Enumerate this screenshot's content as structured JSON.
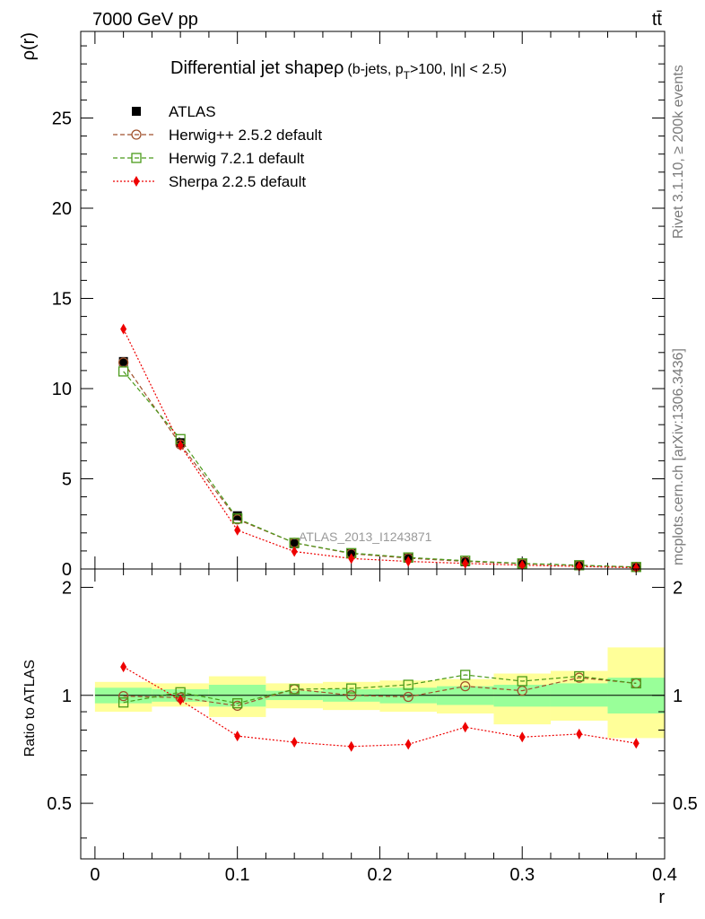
{
  "header": {
    "left": "7000 GeV pp",
    "right": "tt̄"
  },
  "side": {
    "rivet": "Rivet 3.1.10, ≥ 200k events",
    "mcplots": "mcplots.cern.ch [arXiv:1306.3436]"
  },
  "chart_data": [
    {
      "type": "line",
      "title": "Differential jet shape ρ",
      "title_main": "Differential jet shape",
      "title_sym": "ρ",
      "title_sub": "(b-jets, p",
      "title_sub_T": "T",
      "title_sub_rest": ">100, |η| < 2.5)",
      "watermark": "ATLAS_2013_I1243871",
      "ylabel": "ρ(r)",
      "xlabel": "r",
      "xlim": [
        -0.01,
        0.4
      ],
      "ylim": [
        0,
        29.8
      ],
      "yticks": [
        0,
        5,
        10,
        15,
        20,
        25
      ],
      "ytick_labels": [
        "0",
        "5",
        "10",
        "15",
        "20",
        "25"
      ],
      "legend_position": "top-left",
      "x": [
        0.02,
        0.06,
        0.1,
        0.14,
        0.18,
        0.22,
        0.26,
        0.3,
        0.34,
        0.38
      ],
      "series": [
        {
          "name": "ATLAS",
          "color": "#000000",
          "marker": "square-filled",
          "values": [
            11.5,
            7.0,
            2.95,
            1.4,
            0.85,
            0.6,
            0.4,
            0.28,
            0.18,
            0.1
          ]
        },
        {
          "name": "Herwig++ 2.5.2 default",
          "color": "#a0522d",
          "marker": "circle-open",
          "dash": "dashed",
          "values": [
            11.45,
            6.9,
            2.75,
            1.45,
            0.85,
            0.6,
            0.42,
            0.29,
            0.2,
            0.11
          ]
        },
        {
          "name": "Herwig 7.2.1 default",
          "color": "#4a9a1a",
          "marker": "square-open",
          "dash": "dashed",
          "values": [
            10.95,
            7.2,
            2.8,
            1.45,
            0.88,
            0.64,
            0.46,
            0.31,
            0.21,
            0.11
          ]
        },
        {
          "name": "Sherpa 2.2.5 default",
          "color": "#ee0000",
          "marker": "diamond-filled",
          "dash": "dotted",
          "values": [
            13.3,
            6.85,
            2.15,
            0.97,
            0.58,
            0.42,
            0.31,
            0.21,
            0.14,
            0.07
          ]
        }
      ]
    },
    {
      "type": "line",
      "ylabel": "Ratio to ATLAS",
      "xlabel": "r",
      "xlim": [
        -0.01,
        0.4
      ],
      "ylim": [
        0.35,
        2.25
      ],
      "yticks": [
        0.5,
        1,
        2
      ],
      "ytick_labels": [
        "0.5",
        "1",
        "2"
      ],
      "xticks": [
        0,
        0.1,
        0.2,
        0.3,
        0.4
      ],
      "xtick_labels": [
        "0",
        "0.1",
        "0.2",
        "0.3",
        "0.4"
      ],
      "x": [
        0.02,
        0.06,
        0.1,
        0.14,
        0.18,
        0.22,
        0.26,
        0.3,
        0.34,
        0.38
      ],
      "bins": [
        0,
        0.04,
        0.08,
        0.12,
        0.16,
        0.2,
        0.24,
        0.28,
        0.32,
        0.36,
        0.4
      ],
      "band_stat": [
        [
          0.95,
          1.05
        ],
        [
          0.96,
          1.04
        ],
        [
          0.93,
          1.07
        ],
        [
          0.97,
          1.03
        ],
        [
          0.96,
          1.04
        ],
        [
          0.95,
          1.05
        ],
        [
          0.94,
          1.06
        ],
        [
          0.93,
          1.07
        ],
        [
          0.93,
          1.08
        ],
        [
          0.89,
          1.12
        ]
      ],
      "band_total": [
        [
          0.9,
          1.09
        ],
        [
          0.93,
          1.08
        ],
        [
          0.87,
          1.13
        ],
        [
          0.92,
          1.08
        ],
        [
          0.91,
          1.09
        ],
        [
          0.9,
          1.1
        ],
        [
          0.89,
          1.11
        ],
        [
          0.83,
          1.15
        ],
        [
          0.85,
          1.17
        ],
        [
          0.76,
          1.36
        ]
      ],
      "series": [
        {
          "name": "Herwig++ 2.5.2 default",
          "color": "#a0522d",
          "marker": "circle-open",
          "dash": "dashed",
          "values": [
            0.995,
            0.985,
            0.935,
            1.04,
            1.0,
            0.99,
            1.06,
            1.03,
            1.12,
            1.08
          ]
        },
        {
          "name": "Herwig 7.2.1 default",
          "color": "#4a9a1a",
          "marker": "square-open",
          "dash": "dashed",
          "values": [
            0.955,
            1.02,
            0.95,
            1.04,
            1.045,
            1.07,
            1.14,
            1.095,
            1.13,
            1.08
          ]
        },
        {
          "name": "Sherpa 2.2.5 default",
          "color": "#ee0000",
          "marker": "diamond-filled",
          "dash": "dotted",
          "values": [
            1.2,
            0.97,
            0.77,
            0.74,
            0.72,
            0.73,
            0.815,
            0.765,
            0.78,
            0.735
          ]
        }
      ]
    }
  ],
  "colors": {
    "band_stat": "#99ff99",
    "band_total": "#ffff99"
  }
}
